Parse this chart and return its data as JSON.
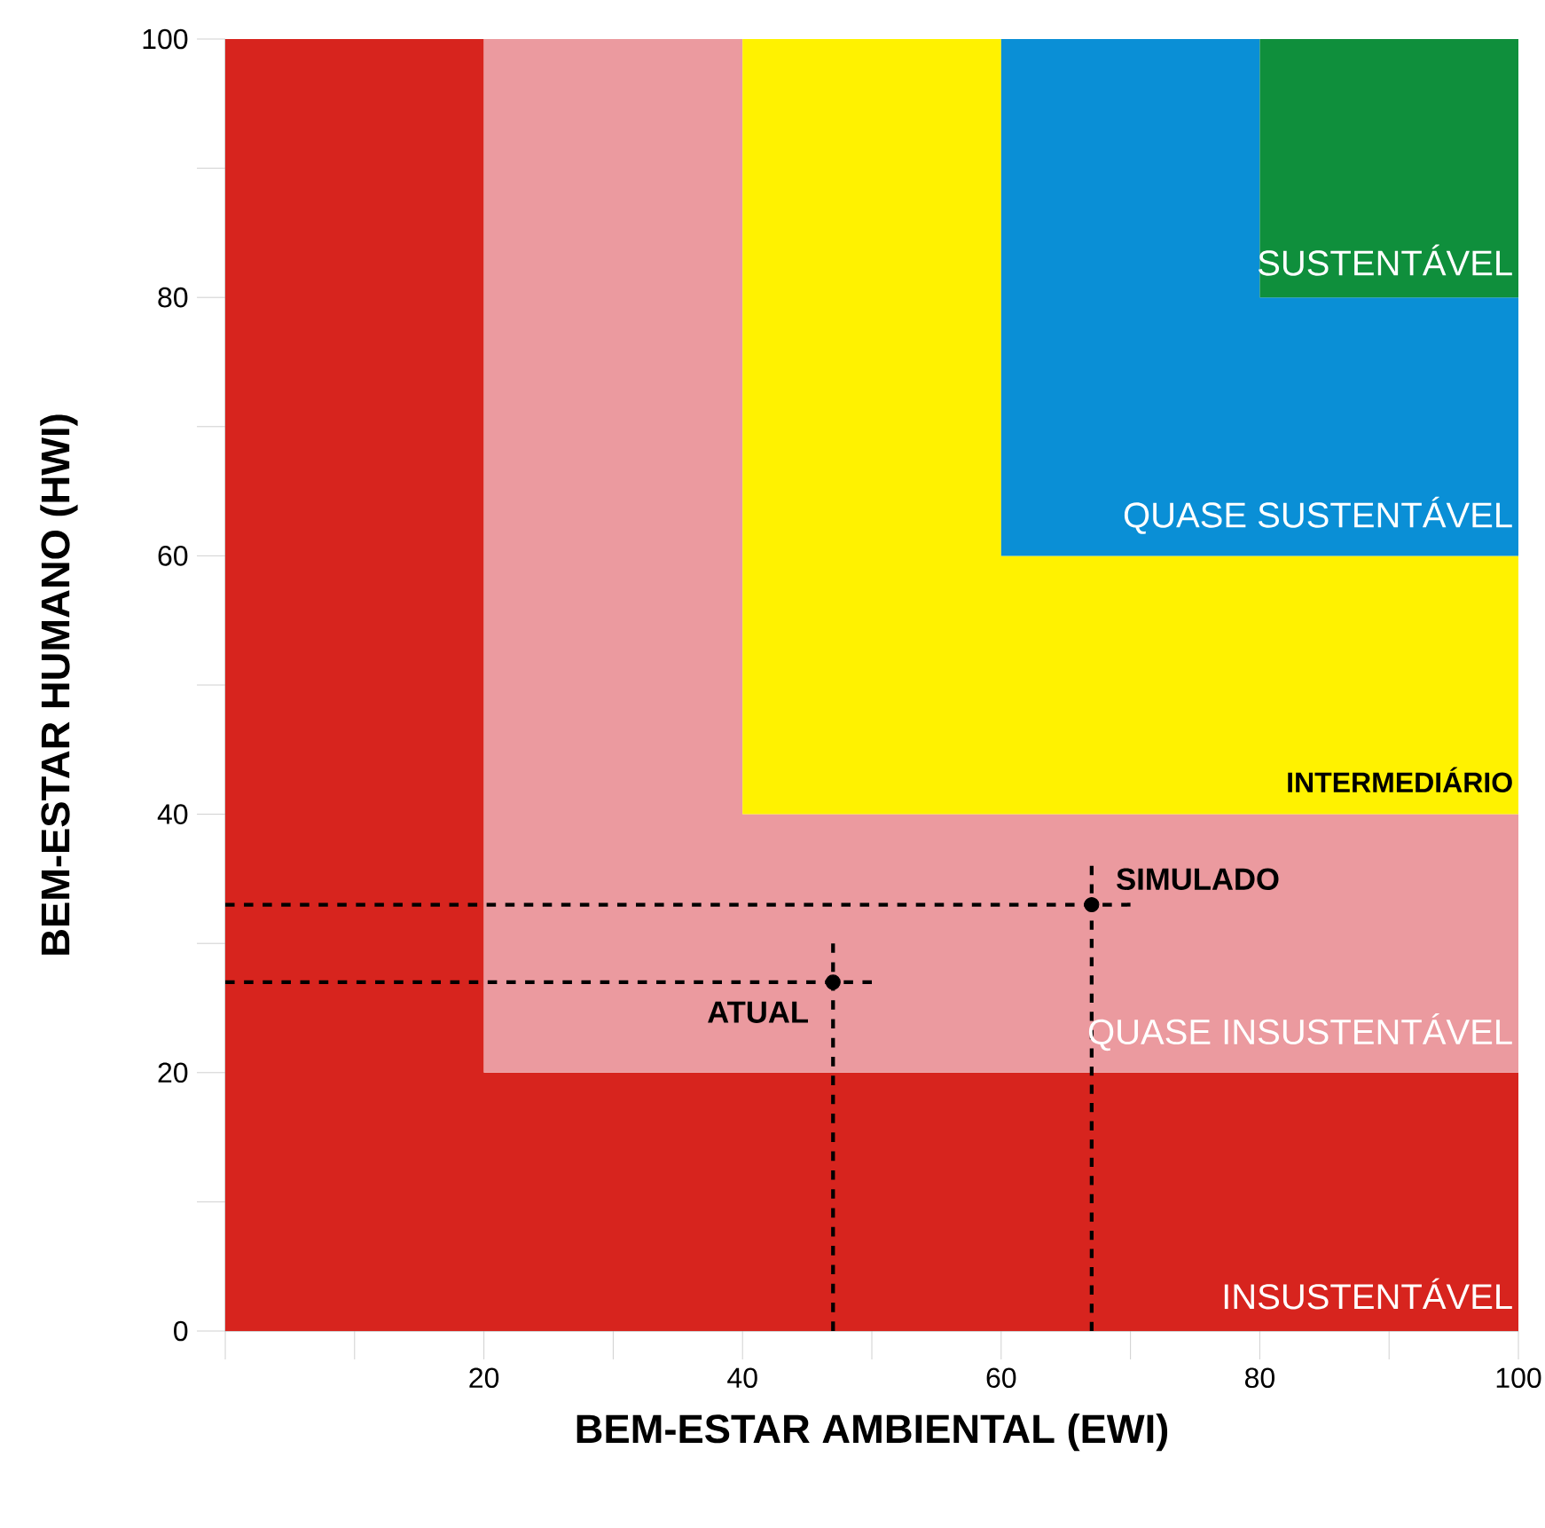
{
  "chart_data": {
    "type": "scatter",
    "stacked": true,
    "xlabel": "BEM-ESTAR AMBIENTAL (EWI)",
    "ylabel": "BEM-ESTAR  HUMANO (HWI)",
    "xlim": [
      0,
      100
    ],
    "ylim": [
      0,
      100
    ],
    "xticks": [
      {
        "value": 0,
        "label": null
      },
      {
        "value": 10,
        "label": null
      },
      20,
      {
        "value": 30,
        "label": null
      },
      40,
      {
        "value": 50,
        "label": null
      },
      60,
      {
        "value": 70,
        "label": null
      },
      80,
      {
        "value": 90,
        "label": null
      },
      100
    ],
    "yticks": [
      0,
      {
        "value": 10,
        "label": null
      },
      20,
      {
        "value": 30,
        "label": null
      },
      40,
      {
        "value": 50,
        "label": null
      },
      60,
      {
        "value": 70,
        "label": null
      },
      80,
      {
        "value": 90,
        "label": null
      },
      100
    ],
    "series": [
      {
        "type": "area",
        "name": "INSUSTENTÁVEL",
        "color": "#d7241e",
        "x": [
          0,
          20,
          20,
          40,
          40,
          60,
          60,
          80,
          80,
          100
        ],
        "values": [
          100,
          100,
          20,
          20,
          20,
          20,
          20,
          20,
          20,
          20
        ]
      },
      {
        "type": "area",
        "name": "QUASE INSUSTENTÁVEL",
        "color": "#eb9a9f",
        "x": [
          0,
          20,
          20,
          40,
          40,
          60,
          60,
          80,
          80,
          100
        ],
        "values": [
          0,
          0,
          80,
          80,
          20,
          20,
          20,
          20,
          20,
          20
        ]
      },
      {
        "type": "area",
        "name": "INTERMEDIÁRIO",
        "color": "#fff200",
        "x": [
          0,
          20,
          20,
          40,
          40,
          60,
          60,
          80,
          80,
          100
        ],
        "values": [
          0,
          0,
          0,
          0,
          60,
          60,
          20,
          20,
          20,
          20
        ]
      },
      {
        "type": "area",
        "name": "QUASE SUSTENTÁVEL",
        "color": "#0a8fd6",
        "x": [
          0,
          20,
          20,
          40,
          40,
          60,
          60,
          80,
          80,
          100
        ],
        "values": [
          0,
          0,
          0,
          0,
          0,
          0,
          40,
          40,
          20,
          20
        ]
      },
      {
        "type": "area",
        "name": "SUSTENTÁVEL",
        "color": "#0f8f3c",
        "x": [
          0,
          20,
          20,
          40,
          40,
          60,
          60,
          80,
          80,
          100
        ],
        "values": [
          0,
          0,
          0,
          0,
          0,
          0,
          0,
          0,
          20,
          20
        ]
      },
      {
        "type": "line",
        "color": "#000000",
        "line_style": "dashed",
        "x": [
          0,
          50
        ],
        "values": [
          27,
          27
        ]
      },
      {
        "type": "line",
        "color": "#000000",
        "line_style": "dashed",
        "x": [
          47,
          47
        ],
        "values": [
          0,
          30
        ]
      },
      {
        "type": "line",
        "color": "#000000",
        "line_style": "dashed",
        "x": [
          0,
          70
        ],
        "values": [
          33,
          33
        ]
      },
      {
        "type": "line",
        "color": "#000000",
        "line_style": "dashed",
        "x": [
          67,
          67
        ],
        "values": [
          0,
          36
        ]
      },
      {
        "name": "ATUAL",
        "color": "#000000",
        "marker": "circle",
        "x": [
          47
        ],
        "values": [
          27
        ]
      },
      {
        "name": "SIMULADO",
        "color": "#000000",
        "marker": "circle",
        "x": [
          67
        ],
        "values": [
          33
        ]
      }
    ]
  }
}
